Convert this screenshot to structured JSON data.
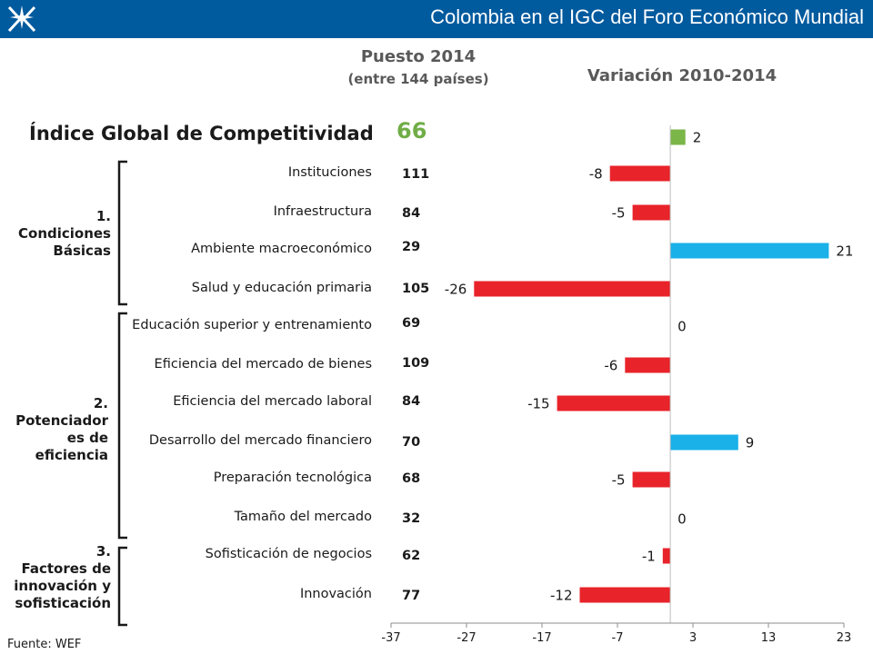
{
  "header": {
    "title": "Colombia en el IGC del Foro Económico Mundial"
  },
  "headings": {
    "rank_title": "Puesto 2014",
    "rank_subtitle": "(entre 144 países)",
    "variation_title": "Variación 2010-2014"
  },
  "index": {
    "label": "Índice Global de Competitividad",
    "rank": "66"
  },
  "groups": [
    {
      "number": "1.",
      "lines": [
        "Condiciones",
        "Básicas"
      ]
    },
    {
      "number": "2.",
      "lines": [
        "Potenciador",
        "es de",
        "eficiencia"
      ]
    },
    {
      "number": "3.",
      "lines": [
        "Factores de",
        "innovación y",
        "sofisticación"
      ]
    }
  ],
  "rows": [
    {
      "label": "Instituciones",
      "rank": "111"
    },
    {
      "label": "Infraestructura",
      "rank": "84"
    },
    {
      "label": "Ambiente macroeconómico",
      "rank": "29"
    },
    {
      "label": "Salud y educación primaria",
      "rank": "105"
    },
    {
      "label": "Educación superior y entrenamiento",
      "rank": "69"
    },
    {
      "label": "Eficiencia del mercado de bienes",
      "rank": "109"
    },
    {
      "label": "Eficiencia del mercado laboral",
      "rank": "84"
    },
    {
      "label": "Desarrollo del mercado financiero",
      "rank": "70"
    },
    {
      "label": "Preparación tecnológica",
      "rank": "68"
    },
    {
      "label": "Tamaño del mercado",
      "rank": "32"
    },
    {
      "label": "Sofisticación de negocios",
      "rank": "62"
    },
    {
      "label": "Innovación",
      "rank": "77"
    }
  ],
  "colors": {
    "header_bg": "#005a9e",
    "negative": "#e8232a",
    "positive": "#1ab0e8",
    "index_bar": "#7ab648",
    "rank_highlight": "#70ad47"
  },
  "chart_data": {
    "type": "bar",
    "orientation": "horizontal",
    "title": "Variación 2010-2014",
    "categories": [
      "Índice Global de Competitividad",
      "Instituciones",
      "Infraestructura",
      "Ambiente macroeconómico",
      "Salud y educación primaria",
      "Educación superior y entrenamiento",
      "Eficiencia del mercado de bienes",
      "Eficiencia del mercado laboral",
      "Desarrollo del mercado financiero",
      "Preparación tecnológica",
      "Tamaño del mercado",
      "Sofisticación de negocios",
      "Innovación"
    ],
    "values": [
      2,
      -8,
      -5,
      21,
      -26,
      0,
      -6,
      -15,
      9,
      -5,
      0,
      -1,
      -12
    ],
    "xlim": [
      -37,
      23
    ],
    "xticks": [
      -37,
      -27,
      -17,
      -7,
      3,
      13,
      23
    ],
    "grid": false
  },
  "footer": {
    "source": "Fuente: WEF"
  }
}
